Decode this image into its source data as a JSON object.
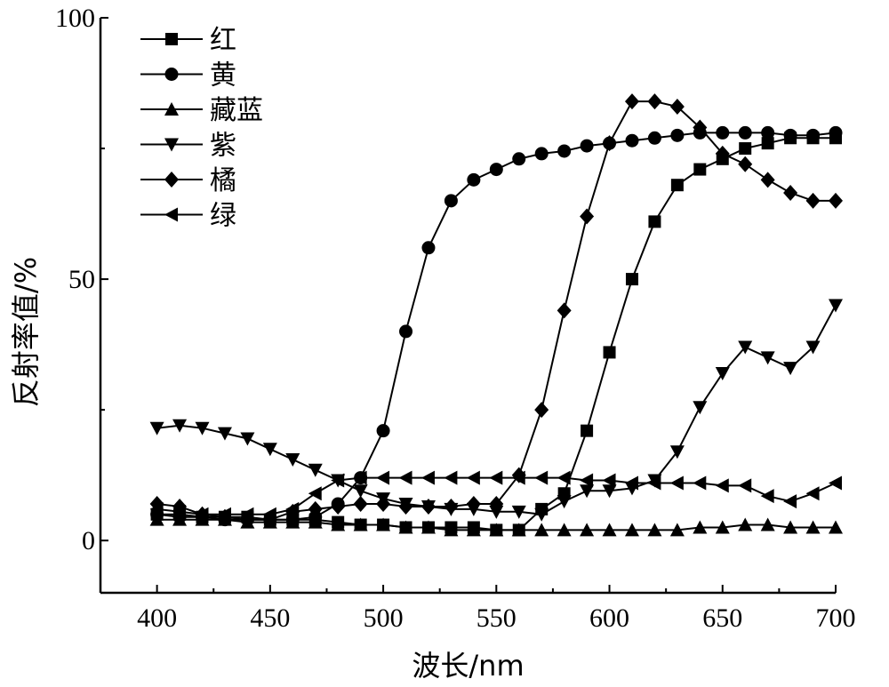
{
  "chart_data": {
    "type": "line",
    "xlabel": "波长/nm",
    "ylabel": "反射率值/%",
    "xlim": [
      375,
      700
    ],
    "ylim": [
      -10,
      100
    ],
    "xticks": [
      400,
      450,
      500,
      550,
      600,
      650,
      700
    ],
    "yticks": [
      0,
      50,
      100
    ],
    "legend_position": "top-left",
    "grid": false,
    "x": [
      400,
      410,
      420,
      430,
      440,
      450,
      460,
      470,
      480,
      490,
      500,
      510,
      520,
      530,
      540,
      550,
      560,
      570,
      580,
      590,
      600,
      610,
      620,
      630,
      640,
      650,
      660,
      670,
      680,
      690,
      700
    ],
    "series": [
      {
        "name": "红",
        "marker": "square",
        "values": [
          5,
          5,
          4.5,
          4.5,
          4.5,
          4,
          4,
          4,
          3.5,
          3,
          3,
          2.5,
          2.5,
          2.5,
          2.5,
          2,
          2,
          6,
          9,
          21,
          36,
          50,
          61,
          68,
          71,
          73,
          75,
          76,
          77,
          77,
          77
        ]
      },
      {
        "name": "黄",
        "marker": "circle",
        "values": [
          5,
          4.5,
          4.5,
          4,
          4,
          4,
          4,
          4.5,
          7,
          12,
          21,
          40,
          56,
          65,
          69,
          71,
          73,
          74,
          74.5,
          75.5,
          76,
          76.5,
          77,
          77.5,
          78,
          78,
          78,
          78,
          77.5,
          77.5,
          78
        ]
      },
      {
        "name": "藏蓝",
        "marker": "triangle-up",
        "values": [
          4,
          4,
          4,
          4,
          3.5,
          3.5,
          3.5,
          3.5,
          3,
          3,
          3,
          2.5,
          2.5,
          2,
          2,
          2,
          2,
          2,
          2,
          2,
          2,
          2,
          2,
          2,
          2.5,
          2.5,
          3,
          3,
          2.5,
          2.5,
          2.5
        ]
      },
      {
        "name": "紫",
        "marker": "triangle-down",
        "values": [
          21.5,
          22,
          21.5,
          20.5,
          19.5,
          17.5,
          15.5,
          13.5,
          11.5,
          9.5,
          8,
          7,
          6.5,
          6,
          6,
          5.5,
          5.5,
          5,
          7.5,
          9.5,
          9.5,
          10,
          11.5,
          17,
          25.5,
          32,
          37,
          35,
          33,
          37,
          45
        ]
      },
      {
        "name": "橘",
        "marker": "diamond",
        "values": [
          7,
          6.5,
          5,
          4.5,
          4,
          4,
          5.5,
          6,
          6.5,
          7,
          7,
          6.5,
          6.5,
          6.5,
          7,
          7,
          12.5,
          25,
          44,
          62,
          76,
          84,
          84,
          83,
          79,
          74,
          72,
          69,
          66.5,
          65,
          65
        ]
      },
      {
        "name": "绿",
        "marker": "triangle-left",
        "values": [
          6,
          5.5,
          5,
          5,
          5,
          5,
          6,
          9,
          11.5,
          12,
          12,
          12,
          12,
          12,
          12,
          12,
          12,
          12,
          12,
          11.5,
          11.5,
          11,
          11,
          11,
          11,
          10.5,
          10.5,
          8.5,
          7.5,
          9,
          11
        ]
      }
    ]
  }
}
